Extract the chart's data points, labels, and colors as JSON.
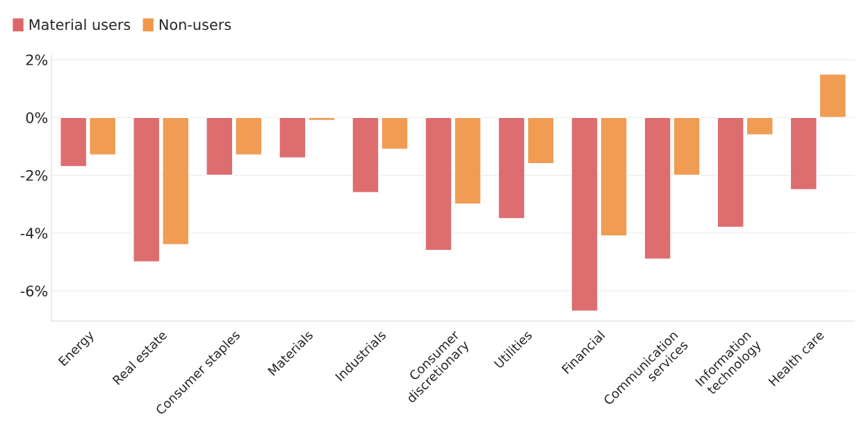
{
  "chart_data": {
    "type": "bar",
    "categories": [
      "Energy",
      "Real estate",
      "Consumer staples",
      "Materials",
      "Industrials",
      "Consumer\ndiscretionary",
      "Utilities",
      "Financial",
      "Communication\nservices",
      "Information\ntechnology",
      "Health care"
    ],
    "series": [
      {
        "name": "Material users",
        "color": "#dc6668",
        "values": [
          -1.7,
          -5.0,
          -2.0,
          -1.4,
          -2.6,
          -4.6,
          -3.5,
          -6.7,
          -4.9,
          -3.8,
          -2.5
        ]
      },
      {
        "name": "Non-users",
        "color": "#f0974a",
        "values": [
          -1.3,
          -4.4,
          -1.3,
          -0.1,
          -1.1,
          -3.0,
          -1.6,
          -4.1,
          -2.0,
          -0.6,
          1.5
        ]
      }
    ],
    "ylim": [
      -7.05,
      2.2
    ],
    "yticks": [
      {
        "value": 2,
        "label": "2%"
      },
      {
        "value": 0,
        "label": "0%"
      },
      {
        "value": -2,
        "label": "-2%"
      },
      {
        "value": -4,
        "label": "-4%"
      },
      {
        "value": -6,
        "label": "-6%"
      }
    ],
    "grid": "y",
    "legend": "top left"
  }
}
